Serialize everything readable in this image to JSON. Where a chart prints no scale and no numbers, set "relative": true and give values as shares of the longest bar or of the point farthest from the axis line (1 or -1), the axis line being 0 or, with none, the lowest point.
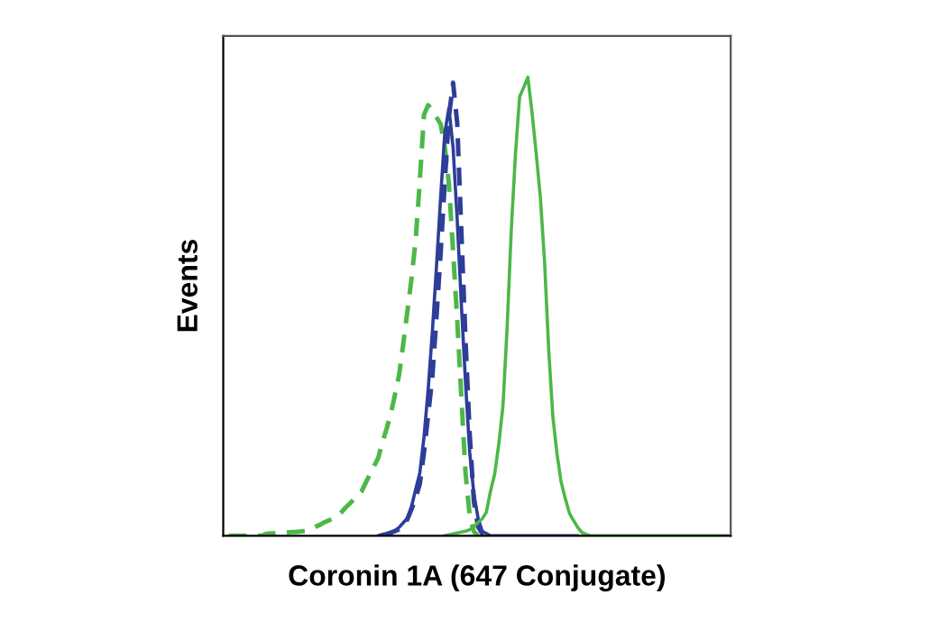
{
  "chart_data": {
    "type": "line",
    "xlabel": "Coronin 1A (647 Conjugate)",
    "ylabel": "Events",
    "relative": true,
    "grid": false,
    "legend": false,
    "marker": "none",
    "categories": [
      null,
      null,
      null,
      null,
      null,
      null,
      null,
      null,
      null,
      null,
      null,
      null,
      null,
      null,
      null,
      null,
      null,
      null,
      null,
      null,
      null,
      null,
      null,
      null,
      null,
      null,
      null,
      null,
      null,
      null,
      null,
      null,
      null,
      null,
      null,
      null,
      null,
      null,
      null,
      null,
      null,
      null,
      null,
      null,
      null,
      null,
      null,
      null,
      null,
      null,
      null,
      null,
      null,
      null,
      null,
      null,
      null,
      null,
      null,
      null,
      null,
      null,
      null,
      null,
      null,
      null,
      null,
      null,
      null,
      null,
      null,
      null,
      null,
      null,
      null,
      null,
      null,
      null,
      null,
      null,
      null,
      null,
      null,
      null,
      null,
      null,
      null,
      null,
      null,
      null,
      null,
      null,
      null,
      null,
      null,
      null,
      null,
      null,
      null,
      null,
      null,
      null,
      null,
      null,
      null,
      null,
      null,
      null,
      null,
      null,
      null,
      null,
      null,
      null,
      null,
      null,
      null,
      null,
      null,
      null,
      null
    ],
    "series": [
      {
        "color": "#4cb848",
        "line_style": "dashed",
        "values": [
          0,
          0,
          0,
          0,
          0,
          0,
          0,
          0,
          0,
          0.004,
          0.005,
          0.005,
          0.006,
          0.007,
          0.007,
          0.008,
          0.008,
          0.009,
          0.01,
          0.011,
          0.016,
          0.02,
          0.024,
          0.029,
          0.033,
          0.037,
          0.041,
          0.05,
          0.06,
          0.069,
          0.078,
          0.087,
          0.097,
          0.116,
          0.134,
          0.152,
          0.17,
          0.204,
          0.233,
          0.265,
          0.307,
          0.35,
          0.417,
          0.489,
          0.561,
          0.645,
          0.774,
          0.918,
          0.939,
          0.928,
          0.913,
          0.898,
          0.85,
          0.768,
          0.621,
          0.47,
          0.301,
          0.137,
          0.044,
          0.009,
          0,
          null,
          null,
          null,
          null,
          null,
          null,
          null,
          null,
          null,
          null,
          null,
          null,
          null,
          null,
          null,
          null,
          null,
          null,
          null,
          null,
          null,
          null,
          null,
          null,
          null,
          null,
          null,
          null,
          null,
          null,
          null,
          null,
          null,
          null,
          null,
          null,
          null,
          null,
          null,
          null,
          null,
          null,
          null,
          null,
          null,
          null,
          null,
          null,
          null,
          null,
          null,
          null,
          null,
          null,
          null,
          null,
          null,
          null,
          null,
          null
        ]
      },
      {
        "color": "#2e3d98",
        "line_style": "solid",
        "values": [
          null,
          null,
          null,
          null,
          null,
          null,
          null,
          null,
          null,
          null,
          null,
          null,
          null,
          null,
          null,
          null,
          null,
          null,
          null,
          null,
          null,
          null,
          null,
          null,
          null,
          null,
          null,
          null,
          null,
          null,
          null,
          null,
          null,
          null,
          null,
          null,
          0,
          0.003,
          0.005,
          0.008,
          0.011,
          0.018,
          0.028,
          0.038,
          0.064,
          0.101,
          0.137,
          0.215,
          0.318,
          0.443,
          0.586,
          0.737,
          0.878,
          0.933,
          0.847,
          0.688,
          0.503,
          0.333,
          0.182,
          0.092,
          0.039,
          0.01,
          0.005,
          0,
          0,
          0,
          0,
          0,
          0,
          0,
          0,
          0,
          0,
          0,
          0,
          0,
          0,
          0,
          0,
          0,
          0,
          0,
          0,
          0,
          0,
          null,
          null,
          null,
          null,
          null,
          null,
          null,
          null,
          null,
          null,
          null,
          null,
          null,
          null,
          null,
          null,
          null,
          null,
          null,
          null,
          null,
          null,
          null,
          null,
          null,
          null,
          null,
          null,
          null,
          null,
          null,
          null,
          null,
          null,
          null,
          null
        ]
      },
      {
        "color": "#2e3d98",
        "line_style": "dashed",
        "values": [
          null,
          null,
          null,
          null,
          null,
          null,
          null,
          null,
          null,
          null,
          null,
          null,
          null,
          null,
          null,
          null,
          null,
          null,
          null,
          null,
          null,
          null,
          null,
          null,
          null,
          null,
          null,
          null,
          null,
          null,
          null,
          null,
          null,
          null,
          null,
          null,
          null,
          0,
          0.002,
          0.006,
          0.01,
          0.014,
          0.019,
          0.036,
          0.058,
          0.083,
          0.113,
          0.182,
          0.263,
          0.345,
          0.476,
          0.615,
          0.771,
          0.914,
          0.988,
          0.9,
          0.662,
          0.426,
          0.222,
          0.075,
          0.02,
          0.005,
          0,
          null,
          null,
          null,
          null,
          null,
          null,
          null,
          null,
          null,
          null,
          null,
          null,
          null,
          null,
          null,
          null,
          null,
          null,
          null,
          null,
          null,
          null,
          null,
          null,
          null,
          null,
          null,
          null,
          null,
          null,
          null,
          null,
          null,
          null,
          null,
          null,
          null,
          null,
          null,
          null,
          null,
          null,
          null,
          null,
          null,
          null,
          null,
          null,
          null,
          null,
          null,
          null,
          null,
          null,
          null,
          null,
          null,
          null
        ]
      },
      {
        "color": "#4cb848",
        "line_style": "solid",
        "values": [
          null,
          null,
          null,
          null,
          null,
          null,
          null,
          null,
          null,
          null,
          null,
          null,
          null,
          null,
          null,
          null,
          null,
          null,
          null,
          null,
          null,
          null,
          null,
          null,
          null,
          null,
          null,
          null,
          null,
          null,
          null,
          null,
          null,
          null,
          null,
          null,
          null,
          null,
          null,
          null,
          null,
          null,
          null,
          null,
          null,
          null,
          null,
          null,
          null,
          null,
          null,
          null,
          0,
          0.002,
          0.004,
          0.006,
          0.008,
          0.01,
          0.013,
          0.02,
          0.029,
          0.037,
          0.051,
          0.097,
          0.134,
          0.2,
          0.283,
          0.453,
          0.666,
          0.831,
          0.957,
          0.978,
          1.0,
          0.923,
          0.834,
          0.738,
          0.6,
          0.407,
          0.26,
          0.179,
          0.117,
          0.081,
          0.049,
          0.033,
          0.018,
          0.007,
          0.003,
          0,
          0,
          0,
          0,
          0,
          0,
          0,
          0,
          0,
          0,
          0,
          0,
          0,
          0,
          0,
          0,
          0,
          0,
          0,
          0,
          0,
          0,
          0,
          0,
          0,
          0,
          0,
          0,
          0,
          0,
          0,
          0,
          0,
          0
        ]
      }
    ]
  }
}
